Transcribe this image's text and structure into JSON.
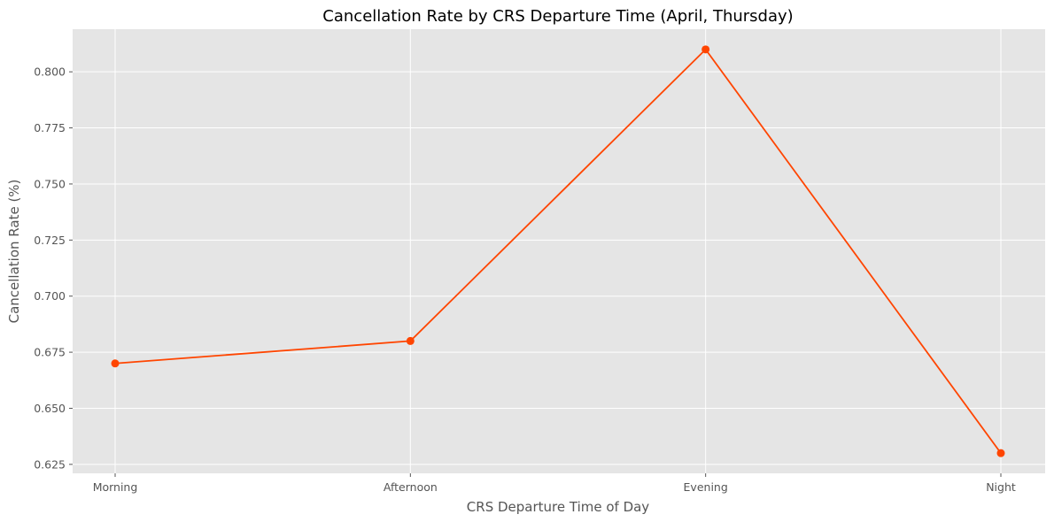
{
  "chart_data": {
    "type": "line",
    "title": "Cancellation Rate by CRS Departure Time (April, Thursday)",
    "xlabel": "CRS Departure Time of Day",
    "ylabel": "Cancellation Rate (%)",
    "categories": [
      "Morning",
      "Afternoon",
      "Evening",
      "Night"
    ],
    "series": [
      {
        "values": [
          0.67,
          0.68,
          0.81,
          0.63
        ],
        "color": "#ff4500"
      }
    ],
    "ylim": [
      0.621,
      0.819
    ],
    "yticks": [
      "0.625",
      "0.650",
      "0.675",
      "0.700",
      "0.725",
      "0.750",
      "0.775",
      "0.800"
    ],
    "grid": true,
    "plot_background": "#e5e5e5",
    "grid_color": "#ffffff"
  }
}
